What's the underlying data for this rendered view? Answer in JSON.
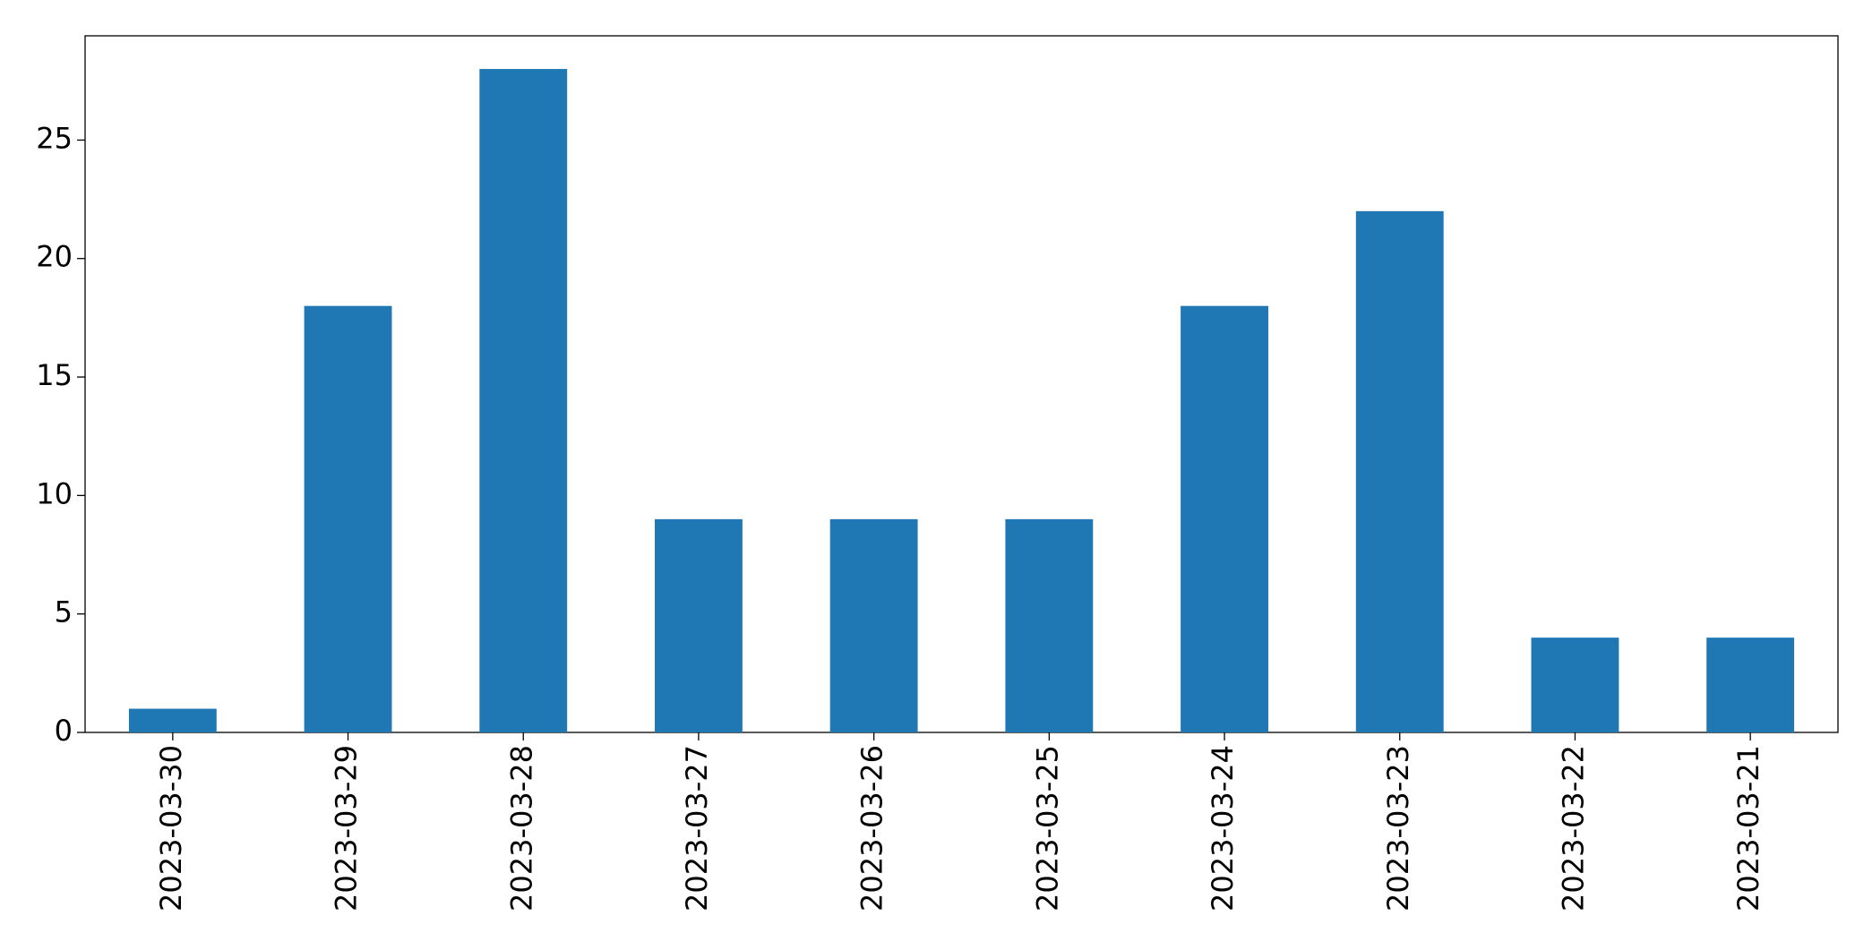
{
  "chart_data": {
    "type": "bar",
    "categories": [
      "2023-03-30",
      "2023-03-29",
      "2023-03-28",
      "2023-03-27",
      "2023-03-26",
      "2023-03-25",
      "2023-03-24",
      "2023-03-23",
      "2023-03-22",
      "2023-03-21"
    ],
    "values": [
      1,
      18,
      28,
      9,
      9,
      9,
      18,
      22,
      4,
      4
    ],
    "color": "#1f77b4",
    "ylim": [
      0,
      29.4
    ],
    "yticks": [
      0,
      5,
      10,
      15,
      20,
      25
    ],
    "grid": false
  }
}
